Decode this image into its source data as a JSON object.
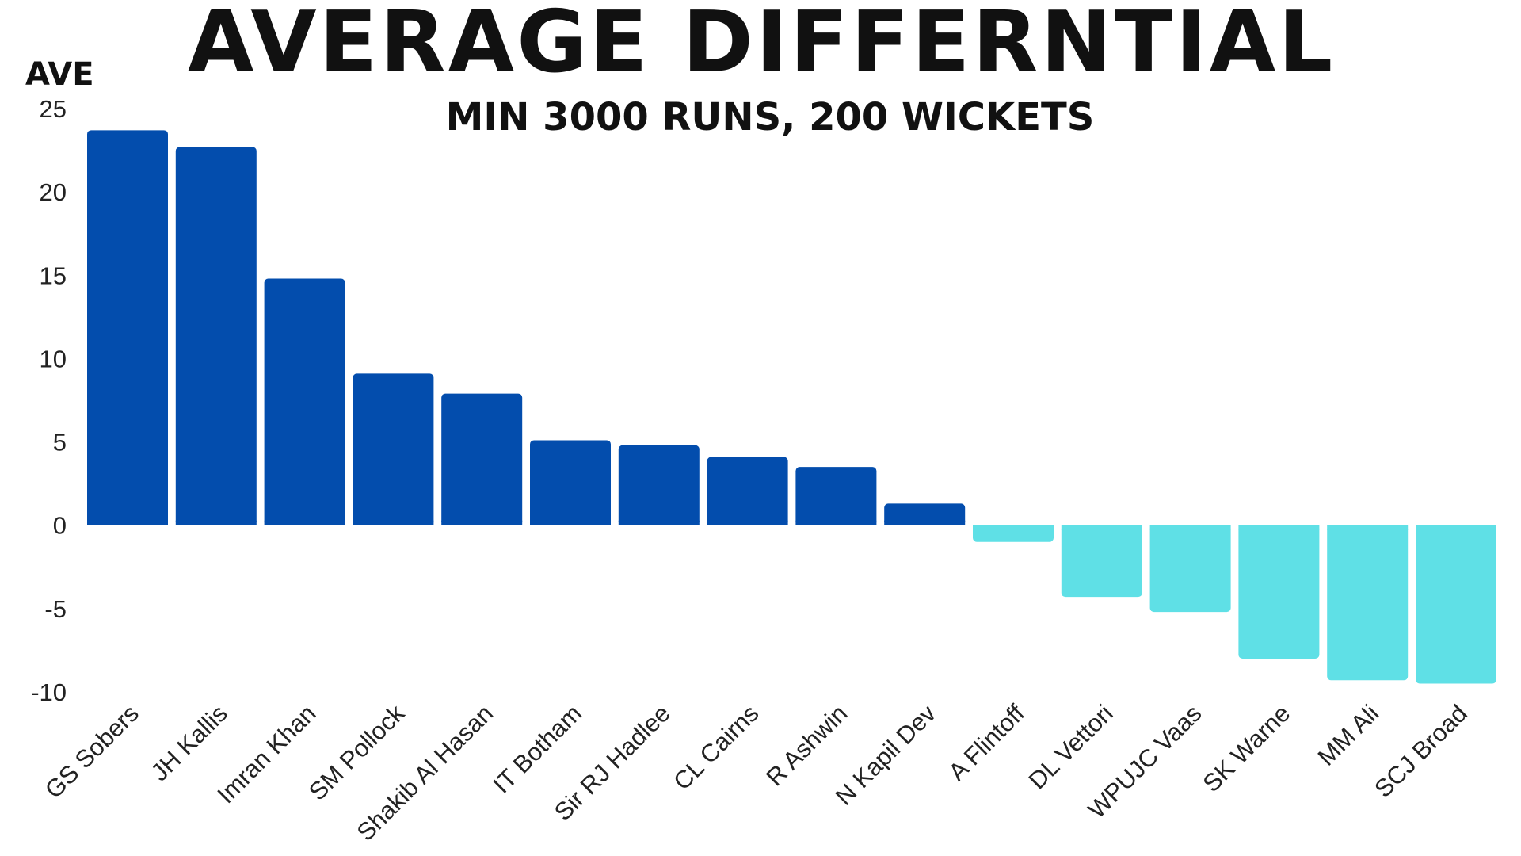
{
  "title": "AVERAGE DIFFERNTIAL",
  "subtitle": "MIN 3000 RUNS, 200 WICKETS",
  "chart_data": {
    "type": "bar",
    "title": "AVERAGE DIFFERNTIAL",
    "subtitle": "MIN 3000 RUNS, 200 WICKETS",
    "xlabel": "",
    "ylabel": "AVE",
    "ylim": [
      -10,
      25
    ],
    "yticks": [
      25,
      20,
      15,
      10,
      5,
      0,
      -5,
      -10
    ],
    "grid": false,
    "legend": "none",
    "colors": {
      "positive": "#034DAD",
      "negative": "#5FE0E6"
    },
    "categories": [
      "GS Sobers",
      "JH Kallis",
      "Imran Khan",
      "SM Pollock",
      "Shakib Al Hasan",
      "IT Botham",
      "Sir RJ Hadlee",
      "CL Cairns",
      "R Ashwin",
      "N Kapil Dev",
      "A Flintoff",
      "DL Vettori",
      "WPUJC Vaas",
      "SK Warne",
      "MM Ali",
      "SCJ Broad"
    ],
    "values": [
      23.7,
      22.7,
      14.8,
      9.1,
      7.9,
      5.1,
      4.8,
      4.1,
      3.5,
      1.3,
      -1.0,
      -4.3,
      -5.2,
      -8.0,
      -9.3,
      -9.5
    ]
  }
}
